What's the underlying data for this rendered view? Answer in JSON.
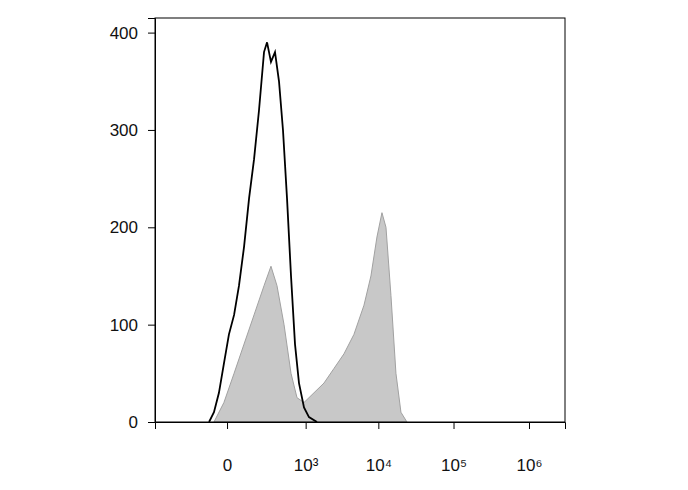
{
  "chart_data": {
    "type": "line",
    "log": "x",
    "xlim": [
      -800,
      3000000
    ],
    "xticks": [
      0,
      {
        "value": 1000,
        "label": "10³"
      },
      {
        "value": 10000,
        "label": "10⁴"
      },
      {
        "value": 100000,
        "label": "10⁵"
      },
      {
        "value": 1000000,
        "label": "10⁶"
      }
    ],
    "ylim": [
      0,
      415
    ],
    "yticks": [
      0,
      100,
      200,
      300,
      400
    ],
    "series": [
      {
        "type": "area",
        "color": "#c8c8c8",
        "x": [
          -49,
          -10,
          24,
          68,
          128,
          209,
          282,
          359,
          469,
          604,
          745,
          946,
          1318,
          1824,
          2510,
          3440,
          4700,
          6420,
          7960,
          9580,
          11180,
          12650,
          14740,
          17180,
          20030,
          24070
        ],
        "values": [
          0,
          20,
          50,
          80,
          110,
          140,
          160,
          140,
          100,
          50,
          25,
          20,
          30,
          40,
          55,
          70,
          90,
          120,
          150,
          190,
          215,
          200,
          130,
          50,
          10,
          0
        ]
      },
      {
        "type": "line",
        "color": "#000000",
        "x": [
          -73,
          -49,
          -28,
          -10,
          6,
          24,
          44,
          68,
          96,
          128,
          165,
          209,
          239,
          282,
          332,
          388,
          451,
          523,
          604,
          695,
          798,
          946,
          1118,
          1455
        ],
        "values": [
          0,
          10,
          30,
          60,
          90,
          110,
          140,
          180,
          230,
          270,
          320,
          380,
          390,
          370,
          380,
          350,
          300,
          230,
          150,
          80,
          40,
          15,
          5,
          0
        ]
      }
    ]
  }
}
